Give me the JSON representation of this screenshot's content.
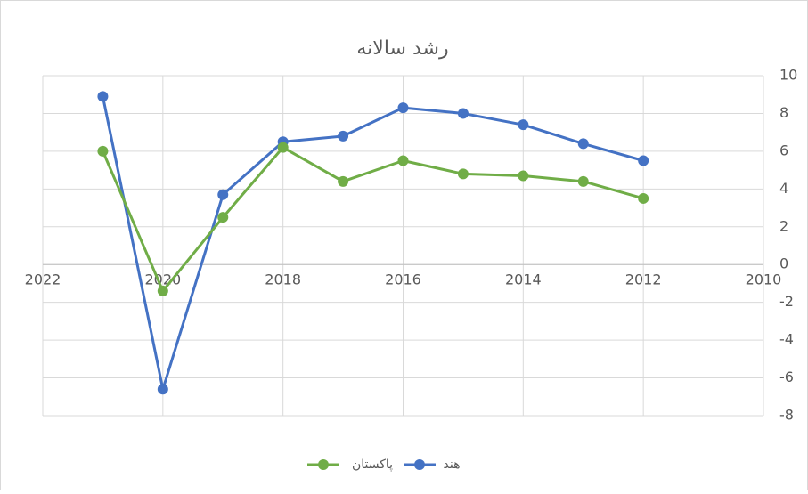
{
  "chart_data": {
    "type": "line",
    "title": "رشد سالانه",
    "xlim": [
      2022,
      2010
    ],
    "xticks": [
      2022,
      2020,
      2018,
      2016,
      2014,
      2012,
      2010
    ],
    "ylim": [
      -8,
      10
    ],
    "yticks": [
      -8,
      -6,
      -4,
      -2,
      0,
      2,
      4,
      6,
      8,
      10
    ],
    "grid": true,
    "y_axis_side": "right",
    "legend": "bottom",
    "series": [
      {
        "name": "هند",
        "color": "#4472c4",
        "x": [
          2021,
          2020,
          2019,
          2018,
          2017,
          2016,
          2015,
          2014,
          2013,
          2012
        ],
        "values": [
          8.9,
          -6.6,
          3.7,
          6.5,
          6.8,
          8.3,
          8.0,
          7.4,
          6.4,
          5.5
        ]
      },
      {
        "name": "پاکستان",
        "color": "#70ad47",
        "x": [
          2021,
          2020,
          2019,
          2018,
          2017,
          2016,
          2015,
          2014,
          2013,
          2012
        ],
        "values": [
          6.0,
          -1.4,
          2.5,
          6.2,
          4.4,
          5.5,
          4.8,
          4.7,
          4.4,
          3.5
        ]
      }
    ]
  }
}
